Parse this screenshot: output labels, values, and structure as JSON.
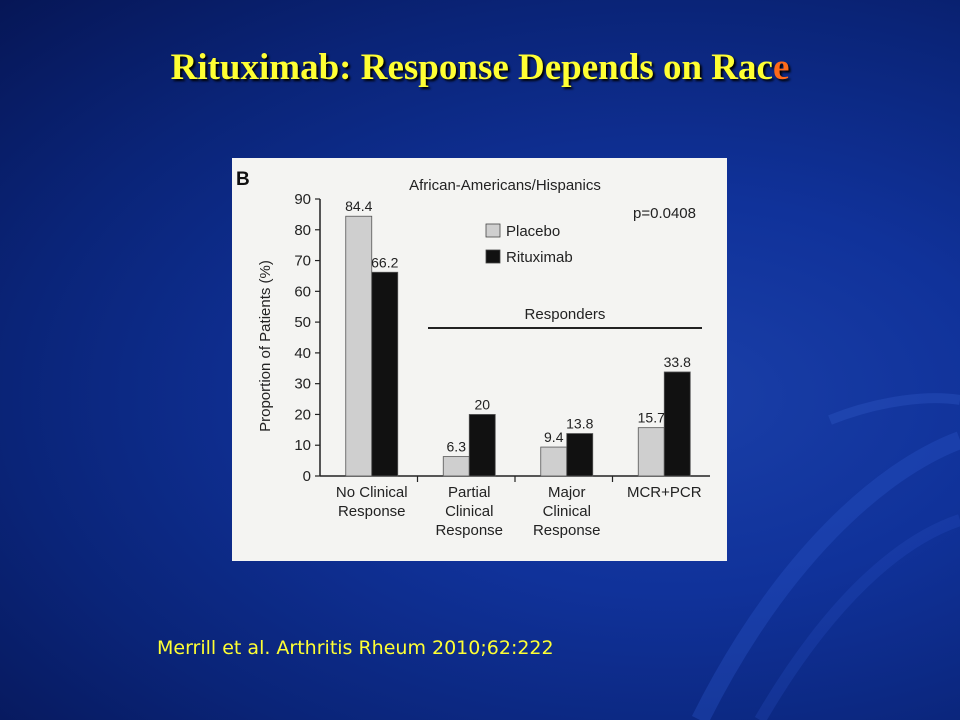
{
  "slide": {
    "title_main": "Rituximab: Response Depends on Rac",
    "title_accent": "e",
    "citation": "Merrill et al. Arthritis Rheum 2010;62:222",
    "colors": {
      "title": "#ffff33",
      "accent": "#ff6a1a",
      "citation": "#ffff33"
    }
  },
  "chart_data": {
    "type": "bar",
    "panel_label": "B",
    "title": "African-Americans/Hispanics",
    "annotation": "p=0.0408",
    "bracket_label": "Responders",
    "ylabel": "Proportion of Patients (%)",
    "ylim": [
      0,
      90
    ],
    "yticks": [
      "0",
      "10",
      "20",
      "30",
      "40",
      "50",
      "60",
      "70",
      "80",
      "90"
    ],
    "categories": [
      [
        "No Clinical",
        "Response"
      ],
      [
        "Partial",
        "Clinical",
        "Response"
      ],
      [
        "Major",
        "Clinical",
        "Response"
      ],
      [
        "MCR+PCR"
      ]
    ],
    "series": [
      {
        "name": "Placebo",
        "color": "#cfcfcf",
        "values": [
          84.4,
          6.3,
          9.4,
          15.7
        ],
        "labels": [
          "84.4",
          "6.3",
          "9.4",
          "15.7"
        ]
      },
      {
        "name": "Rituximab",
        "color": "#111111",
        "values": [
          66.2,
          20,
          13.8,
          33.8
        ],
        "labels": [
          "66.2",
          "20",
          "13.8",
          "33.8"
        ]
      }
    ],
    "legend_position": "top-right",
    "grid": false
  }
}
